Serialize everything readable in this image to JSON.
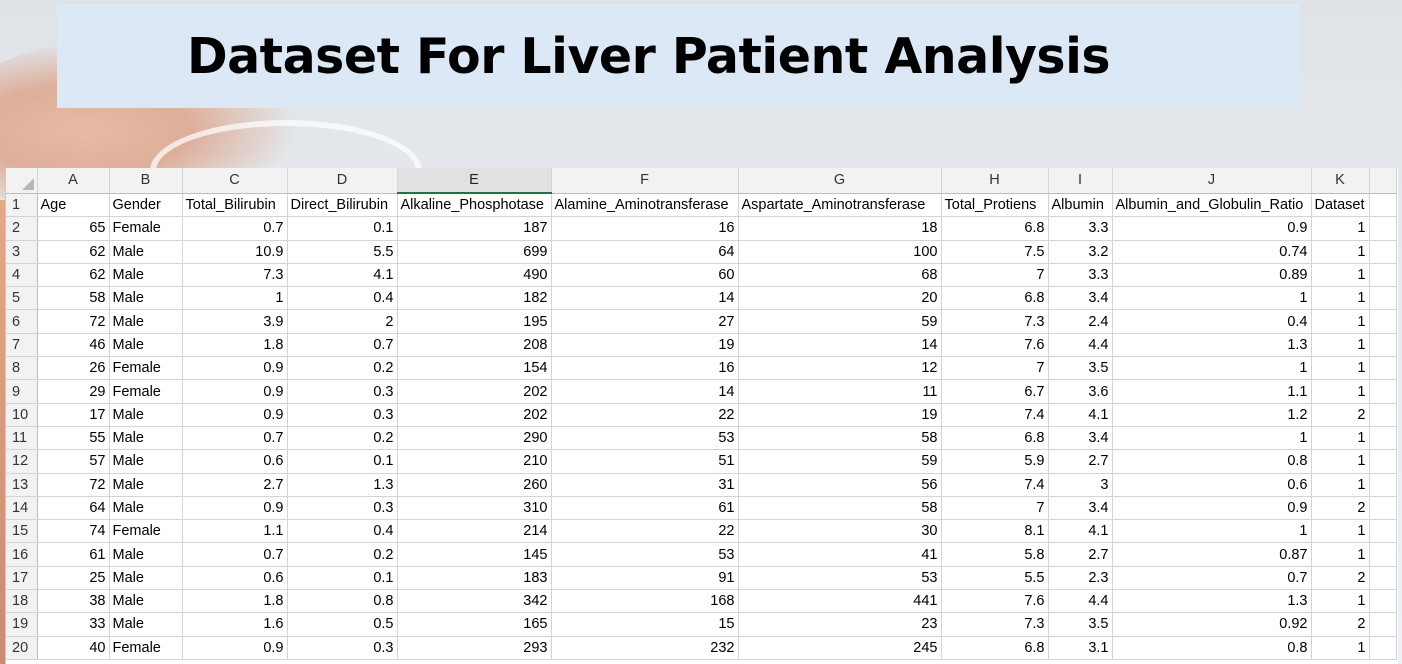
{
  "title": "Dataset For Liver Patient Analysis",
  "colors": {
    "banner_bg": "#dce8f5",
    "selected_column_accent": "#217346"
  },
  "spreadsheet": {
    "column_letters": [
      "A",
      "B",
      "C",
      "D",
      "E",
      "F",
      "G",
      "H",
      "I",
      "J",
      "K"
    ],
    "selected_column": "E",
    "headers": [
      "Age",
      "Gender",
      "Total_Bilirubin",
      "Direct_Bilirubin",
      "Alkaline_Phosphotase",
      "Alamine_Aminotransferase",
      "Aspartate_Aminotransferase",
      "Total_Protiens",
      "Albumin",
      "Albumin_and_Globulin_Ratio",
      "Dataset"
    ],
    "rows": [
      [
        "65",
        "Female",
        "0.7",
        "0.1",
        "187",
        "16",
        "18",
        "6.8",
        "3.3",
        "0.9",
        "1"
      ],
      [
        "62",
        "Male",
        "10.9",
        "5.5",
        "699",
        "64",
        "100",
        "7.5",
        "3.2",
        "0.74",
        "1"
      ],
      [
        "62",
        "Male",
        "7.3",
        "4.1",
        "490",
        "60",
        "68",
        "7",
        "3.3",
        "0.89",
        "1"
      ],
      [
        "58",
        "Male",
        "1",
        "0.4",
        "182",
        "14",
        "20",
        "6.8",
        "3.4",
        "1",
        "1"
      ],
      [
        "72",
        "Male",
        "3.9",
        "2",
        "195",
        "27",
        "59",
        "7.3",
        "2.4",
        "0.4",
        "1"
      ],
      [
        "46",
        "Male",
        "1.8",
        "0.7",
        "208",
        "19",
        "14",
        "7.6",
        "4.4",
        "1.3",
        "1"
      ],
      [
        "26",
        "Female",
        "0.9",
        "0.2",
        "154",
        "16",
        "12",
        "7",
        "3.5",
        "1",
        "1"
      ],
      [
        "29",
        "Female",
        "0.9",
        "0.3",
        "202",
        "14",
        "11",
        "6.7",
        "3.6",
        "1.1",
        "1"
      ],
      [
        "17",
        "Male",
        "0.9",
        "0.3",
        "202",
        "22",
        "19",
        "7.4",
        "4.1",
        "1.2",
        "2"
      ],
      [
        "55",
        "Male",
        "0.7",
        "0.2",
        "290",
        "53",
        "58",
        "6.8",
        "3.4",
        "1",
        "1"
      ],
      [
        "57",
        "Male",
        "0.6",
        "0.1",
        "210",
        "51",
        "59",
        "5.9",
        "2.7",
        "0.8",
        "1"
      ],
      [
        "72",
        "Male",
        "2.7",
        "1.3",
        "260",
        "31",
        "56",
        "7.4",
        "3",
        "0.6",
        "1"
      ],
      [
        "64",
        "Male",
        "0.9",
        "0.3",
        "310",
        "61",
        "58",
        "7",
        "3.4",
        "0.9",
        "2"
      ],
      [
        "74",
        "Female",
        "1.1",
        "0.4",
        "214",
        "22",
        "30",
        "8.1",
        "4.1",
        "1",
        "1"
      ],
      [
        "61",
        "Male",
        "0.7",
        "0.2",
        "145",
        "53",
        "41",
        "5.8",
        "2.7",
        "0.87",
        "1"
      ],
      [
        "25",
        "Male",
        "0.6",
        "0.1",
        "183",
        "91",
        "53",
        "5.5",
        "2.3",
        "0.7",
        "2"
      ],
      [
        "38",
        "Male",
        "1.8",
        "0.8",
        "342",
        "168",
        "441",
        "7.6",
        "4.4",
        "1.3",
        "1"
      ],
      [
        "33",
        "Male",
        "1.6",
        "0.5",
        "165",
        "15",
        "23",
        "7.3",
        "3.5",
        "0.92",
        "2"
      ],
      [
        "40",
        "Female",
        "0.9",
        "0.3",
        "293",
        "232",
        "245",
        "6.8",
        "3.1",
        "0.8",
        "1"
      ]
    ]
  }
}
